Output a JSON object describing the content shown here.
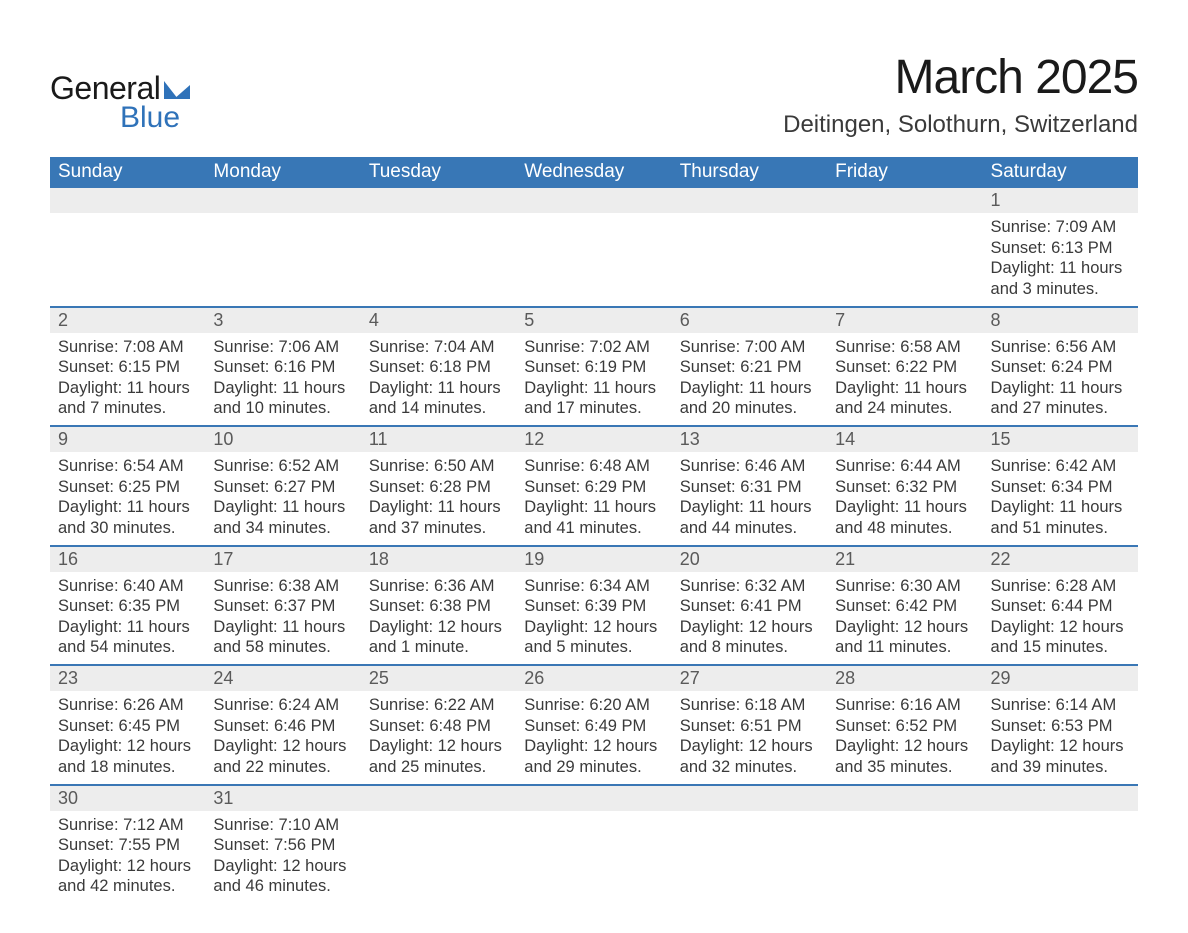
{
  "logo": {
    "text1": "General",
    "text2": "Blue"
  },
  "title": "March 2025",
  "location": "Deitingen, Solothurn, Switzerland",
  "colors": {
    "header_bg": "#3877b6",
    "header_text": "#ffffff",
    "daynum_bg": "#ededed",
    "row_border": "#3a77b5",
    "text": "#3a3a3a"
  },
  "weekdays": [
    "Sunday",
    "Monday",
    "Tuesday",
    "Wednesday",
    "Thursday",
    "Friday",
    "Saturday"
  ],
  "weeks": [
    [
      null,
      null,
      null,
      null,
      null,
      null,
      {
        "day": "1",
        "sunrise": "Sunrise: 7:09 AM",
        "sunset": "Sunset: 6:13 PM",
        "d1": "Daylight: 11 hours",
        "d2": "and 3 minutes."
      }
    ],
    [
      {
        "day": "2",
        "sunrise": "Sunrise: 7:08 AM",
        "sunset": "Sunset: 6:15 PM",
        "d1": "Daylight: 11 hours",
        "d2": "and 7 minutes."
      },
      {
        "day": "3",
        "sunrise": "Sunrise: 7:06 AM",
        "sunset": "Sunset: 6:16 PM",
        "d1": "Daylight: 11 hours",
        "d2": "and 10 minutes."
      },
      {
        "day": "4",
        "sunrise": "Sunrise: 7:04 AM",
        "sunset": "Sunset: 6:18 PM",
        "d1": "Daylight: 11 hours",
        "d2": "and 14 minutes."
      },
      {
        "day": "5",
        "sunrise": "Sunrise: 7:02 AM",
        "sunset": "Sunset: 6:19 PM",
        "d1": "Daylight: 11 hours",
        "d2": "and 17 minutes."
      },
      {
        "day": "6",
        "sunrise": "Sunrise: 7:00 AM",
        "sunset": "Sunset: 6:21 PM",
        "d1": "Daylight: 11 hours",
        "d2": "and 20 minutes."
      },
      {
        "day": "7",
        "sunrise": "Sunrise: 6:58 AM",
        "sunset": "Sunset: 6:22 PM",
        "d1": "Daylight: 11 hours",
        "d2": "and 24 minutes."
      },
      {
        "day": "8",
        "sunrise": "Sunrise: 6:56 AM",
        "sunset": "Sunset: 6:24 PM",
        "d1": "Daylight: 11 hours",
        "d2": "and 27 minutes."
      }
    ],
    [
      {
        "day": "9",
        "sunrise": "Sunrise: 6:54 AM",
        "sunset": "Sunset: 6:25 PM",
        "d1": "Daylight: 11 hours",
        "d2": "and 30 minutes."
      },
      {
        "day": "10",
        "sunrise": "Sunrise: 6:52 AM",
        "sunset": "Sunset: 6:27 PM",
        "d1": "Daylight: 11 hours",
        "d2": "and 34 minutes."
      },
      {
        "day": "11",
        "sunrise": "Sunrise: 6:50 AM",
        "sunset": "Sunset: 6:28 PM",
        "d1": "Daylight: 11 hours",
        "d2": "and 37 minutes."
      },
      {
        "day": "12",
        "sunrise": "Sunrise: 6:48 AM",
        "sunset": "Sunset: 6:29 PM",
        "d1": "Daylight: 11 hours",
        "d2": "and 41 minutes."
      },
      {
        "day": "13",
        "sunrise": "Sunrise: 6:46 AM",
        "sunset": "Sunset: 6:31 PM",
        "d1": "Daylight: 11 hours",
        "d2": "and 44 minutes."
      },
      {
        "day": "14",
        "sunrise": "Sunrise: 6:44 AM",
        "sunset": "Sunset: 6:32 PM",
        "d1": "Daylight: 11 hours",
        "d2": "and 48 minutes."
      },
      {
        "day": "15",
        "sunrise": "Sunrise: 6:42 AM",
        "sunset": "Sunset: 6:34 PM",
        "d1": "Daylight: 11 hours",
        "d2": "and 51 minutes."
      }
    ],
    [
      {
        "day": "16",
        "sunrise": "Sunrise: 6:40 AM",
        "sunset": "Sunset: 6:35 PM",
        "d1": "Daylight: 11 hours",
        "d2": "and 54 minutes."
      },
      {
        "day": "17",
        "sunrise": "Sunrise: 6:38 AM",
        "sunset": "Sunset: 6:37 PM",
        "d1": "Daylight: 11 hours",
        "d2": "and 58 minutes."
      },
      {
        "day": "18",
        "sunrise": "Sunrise: 6:36 AM",
        "sunset": "Sunset: 6:38 PM",
        "d1": "Daylight: 12 hours",
        "d2": "and 1 minute."
      },
      {
        "day": "19",
        "sunrise": "Sunrise: 6:34 AM",
        "sunset": "Sunset: 6:39 PM",
        "d1": "Daylight: 12 hours",
        "d2": "and 5 minutes."
      },
      {
        "day": "20",
        "sunrise": "Sunrise: 6:32 AM",
        "sunset": "Sunset: 6:41 PM",
        "d1": "Daylight: 12 hours",
        "d2": "and 8 minutes."
      },
      {
        "day": "21",
        "sunrise": "Sunrise: 6:30 AM",
        "sunset": "Sunset: 6:42 PM",
        "d1": "Daylight: 12 hours",
        "d2": "and 11 minutes."
      },
      {
        "day": "22",
        "sunrise": "Sunrise: 6:28 AM",
        "sunset": "Sunset: 6:44 PM",
        "d1": "Daylight: 12 hours",
        "d2": "and 15 minutes."
      }
    ],
    [
      {
        "day": "23",
        "sunrise": "Sunrise: 6:26 AM",
        "sunset": "Sunset: 6:45 PM",
        "d1": "Daylight: 12 hours",
        "d2": "and 18 minutes."
      },
      {
        "day": "24",
        "sunrise": "Sunrise: 6:24 AM",
        "sunset": "Sunset: 6:46 PM",
        "d1": "Daylight: 12 hours",
        "d2": "and 22 minutes."
      },
      {
        "day": "25",
        "sunrise": "Sunrise: 6:22 AM",
        "sunset": "Sunset: 6:48 PM",
        "d1": "Daylight: 12 hours",
        "d2": "and 25 minutes."
      },
      {
        "day": "26",
        "sunrise": "Sunrise: 6:20 AM",
        "sunset": "Sunset: 6:49 PM",
        "d1": "Daylight: 12 hours",
        "d2": "and 29 minutes."
      },
      {
        "day": "27",
        "sunrise": "Sunrise: 6:18 AM",
        "sunset": "Sunset: 6:51 PM",
        "d1": "Daylight: 12 hours",
        "d2": "and 32 minutes."
      },
      {
        "day": "28",
        "sunrise": "Sunrise: 6:16 AM",
        "sunset": "Sunset: 6:52 PM",
        "d1": "Daylight: 12 hours",
        "d2": "and 35 minutes."
      },
      {
        "day": "29",
        "sunrise": "Sunrise: 6:14 AM",
        "sunset": "Sunset: 6:53 PM",
        "d1": "Daylight: 12 hours",
        "d2": "and 39 minutes."
      }
    ],
    [
      {
        "day": "30",
        "sunrise": "Sunrise: 7:12 AM",
        "sunset": "Sunset: 7:55 PM",
        "d1": "Daylight: 12 hours",
        "d2": "and 42 minutes."
      },
      {
        "day": "31",
        "sunrise": "Sunrise: 7:10 AM",
        "sunset": "Sunset: 7:56 PM",
        "d1": "Daylight: 12 hours",
        "d2": "and 46 minutes."
      },
      null,
      null,
      null,
      null,
      null
    ]
  ]
}
